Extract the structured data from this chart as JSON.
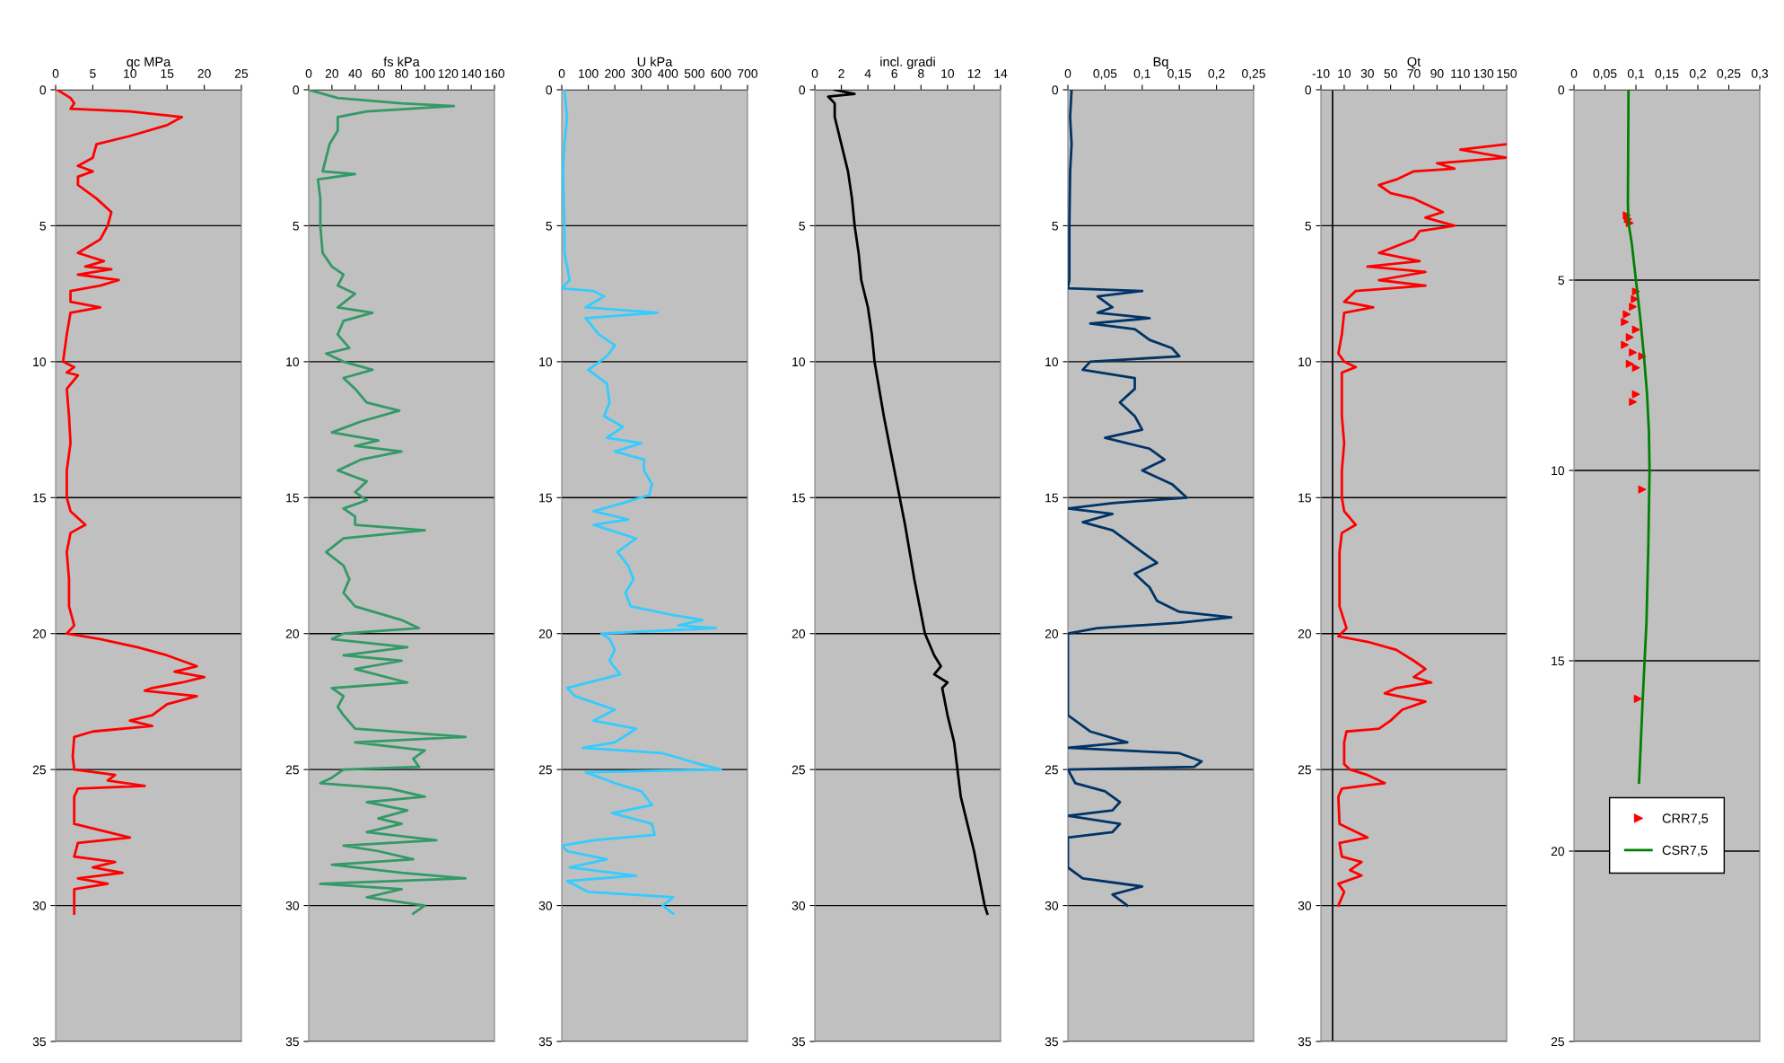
{
  "chart_data": [
    {
      "type": "line",
      "orientation": "horizontal",
      "xlabel": "qc MPa",
      "xlim": [
        0,
        25
      ],
      "xticks": [
        0,
        5,
        10,
        15,
        20,
        25
      ],
      "ylim": [
        35,
        0
      ],
      "yticks": [
        0,
        5,
        10,
        15,
        20,
        25,
        30,
        35
      ],
      "grid": "y",
      "series": [
        {
          "color": "#ff0000",
          "x": [
            0,
            0.3,
            0.5,
            0.7,
            0.8,
            1.0,
            1.3,
            1.7,
            2.0,
            2.5,
            2.8,
            3.0,
            3.2,
            3.5,
            4.0,
            4.5,
            5.0,
            5.5,
            6.0,
            6.3,
            6.5,
            6.6,
            6.8,
            7.0,
            7.2,
            7.4,
            7.8,
            8.0,
            8.2,
            9.0,
            10.0,
            10.2,
            10.4,
            10.5,
            11,
            12,
            13,
            14,
            15,
            15.5,
            16.0,
            16.3,
            17,
            18,
            19,
            19.7,
            20.0,
            20.2,
            20.5,
            20.8,
            21.2,
            21.4,
            21.6,
            21.8,
            22.0,
            22.1,
            22.3,
            22.6,
            23.0,
            23.2,
            23.4,
            23.6,
            23.8,
            24.5,
            25.0,
            25.2,
            25.4,
            25.6,
            25.7,
            26,
            27,
            27.5,
            27.7,
            28.2,
            28.4,
            28.6,
            28.8,
            29.0,
            29.2,
            29.4,
            30.0,
            30.3
          ],
          "values": [
            0.2,
            2,
            2.5,
            2,
            10,
            17,
            15,
            10,
            5.5,
            5,
            3,
            5,
            3,
            3,
            5.5,
            7.5,
            7,
            6,
            3,
            6.5,
            4,
            7.5,
            3,
            8.5,
            6,
            2,
            2,
            6,
            2,
            1.5,
            1,
            2.5,
            1.5,
            3,
            1.5,
            1.8,
            2,
            1.5,
            1.5,
            2,
            4,
            2,
            1.5,
            1.8,
            1.8,
            2.5,
            1.5,
            6,
            11,
            15,
            19,
            16,
            20,
            17,
            13,
            12,
            19,
            15,
            13,
            10,
            13,
            5,
            2.5,
            2.3,
            2.5,
            8,
            7,
            12,
            3,
            2.5,
            2.5,
            10,
            3,
            2.5,
            8,
            5,
            9,
            3,
            7,
            2.5,
            2.5,
            2.5
          ]
        }
      ]
    },
    {
      "type": "line",
      "orientation": "horizontal",
      "xlabel": "fs kPa",
      "xlim": [
        0,
        160
      ],
      "xticks": [
        0,
        20,
        40,
        60,
        80,
        100,
        120,
        140,
        160
      ],
      "ylim": [
        35,
        0
      ],
      "yticks": [
        0,
        5,
        10,
        15,
        20,
        25,
        30,
        35
      ],
      "grid": "y",
      "series": [
        {
          "color": "#339966",
          "x": [
            0,
            0.3,
            0.5,
            0.6,
            0.8,
            1.0,
            1.5,
            2,
            2.5,
            3,
            3.1,
            3.3,
            4,
            5,
            6,
            6.5,
            6.8,
            7.2,
            7.5,
            8.0,
            8.2,
            8.5,
            9.0,
            9.5,
            9.7,
            10.0,
            10.3,
            10.6,
            11.0,
            11.5,
            11.8,
            12.2,
            12.6,
            12.9,
            13.1,
            13.3,
            13.6,
            14.0,
            14.4,
            14.8,
            15.1,
            15.4,
            15.7,
            16.0,
            16.2,
            16.5,
            17.0,
            17.5,
            18.0,
            18.5,
            19.0,
            19.5,
            19.8,
            20.0,
            20.2,
            20.5,
            20.8,
            21.0,
            21.3,
            21.8,
            22.0,
            22.3,
            22.7,
            23.0,
            23.5,
            23.8,
            24.0,
            24.3,
            24.6,
            24.9,
            25.0,
            25.3,
            25.5,
            25.7,
            26.0,
            26.2,
            26.5,
            26.8,
            27.0,
            27.3,
            27.6,
            27.8,
            28.0,
            28.3,
            28.5,
            28.8,
            29.0,
            29.2,
            29.4,
            29.7,
            30.0,
            30.3
          ],
          "values": [
            0,
            25,
            80,
            125,
            50,
            25,
            25,
            18,
            15,
            12,
            40,
            8,
            10,
            10,
            12,
            20,
            30,
            25,
            40,
            25,
            55,
            30,
            25,
            35,
            15,
            30,
            55,
            30,
            40,
            50,
            78,
            45,
            20,
            60,
            40,
            80,
            45,
            25,
            50,
            40,
            50,
            30,
            40,
            40,
            100,
            30,
            15,
            30,
            35,
            30,
            40,
            80,
            95,
            30,
            20,
            85,
            30,
            80,
            40,
            85,
            20,
            30,
            25,
            30,
            40,
            135,
            40,
            100,
            90,
            95,
            30,
            20,
            10,
            70,
            100,
            50,
            85,
            60,
            80,
            50,
            110,
            30,
            60,
            90,
            20,
            80,
            135,
            10,
            80,
            50,
            100,
            90
          ]
        }
      ]
    },
    {
      "type": "line",
      "orientation": "horizontal",
      "xlabel": "U kPa",
      "xlim": [
        0,
        700
      ],
      "xticks": [
        0,
        100,
        200,
        300,
        400,
        500,
        600,
        700
      ],
      "ylim": [
        35,
        0
      ],
      "yticks": [
        0,
        5,
        10,
        15,
        20,
        25,
        30,
        35
      ],
      "grid": "y",
      "series": [
        {
          "color": "#33ccff",
          "x": [
            0,
            1,
            2,
            3,
            5,
            6,
            7,
            7.3,
            7.4,
            7.6,
            8.0,
            8.2,
            8.4,
            9.0,
            9.4,
            9.8,
            10.3,
            10.8,
            11.5,
            12.0,
            12.4,
            12.8,
            13.0,
            13.3,
            13.6,
            14.0,
            14.5,
            14.9,
            15.2,
            15.5,
            15.8,
            16.0,
            16.5,
            17.0,
            17.5,
            18.0,
            18.5,
            19.0,
            19.3,
            19.5,
            19.7,
            19.8,
            20.0,
            20.2,
            20.6,
            21.0,
            21.5,
            22.0,
            22.3,
            22.8,
            23.2,
            23.5,
            24.0,
            24.2,
            24.4,
            24.6,
            24.8,
            25.0,
            25.1,
            25.5,
            25.8,
            26.3,
            26.6,
            27.0,
            27.4,
            27.6,
            27.8,
            28.0,
            28.3,
            28.6,
            28.9,
            29.1,
            29.5,
            29.7,
            30.0,
            30.3
          ],
          "values": [
            10,
            20,
            10,
            5,
            10,
            10,
            30,
            0,
            120,
            160,
            90,
            360,
            90,
            140,
            200,
            170,
            100,
            170,
            180,
            160,
            230,
            170,
            300,
            200,
            310,
            310,
            340,
            330,
            230,
            120,
            250,
            120,
            280,
            210,
            250,
            270,
            240,
            260,
            410,
            530,
            440,
            580,
            150,
            180,
            200,
            180,
            220,
            20,
            50,
            200,
            120,
            280,
            200,
            80,
            380,
            450,
            520,
            600,
            90,
            200,
            300,
            340,
            190,
            340,
            350,
            120,
            0,
            20,
            170,
            30,
            280,
            20,
            100,
            420,
            380,
            420
          ]
        }
      ]
    },
    {
      "type": "line",
      "orientation": "horizontal",
      "xlabel": "incl. gradi",
      "xlim": [
        0,
        14
      ],
      "xticks": [
        0,
        2,
        4,
        6,
        8,
        10,
        12,
        14
      ],
      "ylim": [
        35,
        0
      ],
      "yticks": [
        0,
        5,
        10,
        15,
        20,
        25,
        30,
        35
      ],
      "grid": "y",
      "series": [
        {
          "color": "#000000",
          "x": [
            0,
            0.15,
            0.25,
            0.5,
            1,
            2,
            3,
            4,
            5,
            6,
            7,
            8,
            9,
            10,
            12,
            14,
            16,
            18,
            20,
            20.8,
            21.2,
            21.5,
            21.8,
            22,
            23,
            24,
            26,
            28,
            30,
            30.3
          ],
          "values": [
            1.5,
            3,
            1,
            1.5,
            1.5,
            2,
            2.5,
            2.8,
            3,
            3.3,
            3.5,
            4,
            4.3,
            4.5,
            5.2,
            6,
            6.8,
            7.5,
            8.3,
            9,
            9.5,
            9,
            10,
            9.6,
            10,
            10.5,
            11,
            12,
            12.8,
            13
          ]
        }
      ]
    },
    {
      "type": "line",
      "orientation": "horizontal",
      "xlabel": "Bq",
      "xlim": [
        0,
        0.25
      ],
      "xticks": [
        0,
        {
          "value": 0.05,
          "label": "0,05"
        },
        {
          "value": 0.1,
          "label": "0,1"
        },
        {
          "value": 0.15,
          "label": "0,15"
        },
        {
          "value": 0.2,
          "label": "0,2"
        },
        {
          "value": 0.25,
          "label": "0,25"
        }
      ],
      "ylim": [
        35,
        0
      ],
      "yticks": [
        0,
        5,
        10,
        15,
        20,
        25,
        30,
        35
      ],
      "grid": "y",
      "series": [
        {
          "color": "#003366",
          "x": [
            0,
            1,
            2,
            3,
            5,
            7,
            7.3,
            7.4,
            7.6,
            8.0,
            8.2,
            8.4,
            8.6,
            8.8,
            9.2,
            9.5,
            9.8,
            10.0,
            10.3,
            10.6,
            11,
            11.5,
            12,
            12.5,
            12.8,
            13.2,
            13.6,
            14.0,
            14.5,
            15.0,
            15.2,
            15.4,
            15.6,
            15.9,
            16.2,
            16.6,
            17.0,
            17.4,
            17.8,
            18.3,
            18.8,
            19.2,
            19.4,
            19.6,
            19.8,
            20.0,
            21,
            22,
            23,
            23.6,
            24.0,
            24.2,
            24.4,
            24.7,
            24.9,
            25.0,
            25.5,
            25.8,
            26.2,
            26.5,
            26.7,
            27.0,
            27.3,
            27.5,
            28,
            28.6,
            29.0,
            29.3,
            29.6,
            30.0
          ],
          "values": [
            0.005,
            0.003,
            0.005,
            0.003,
            0.002,
            0.002,
            0.0,
            0.1,
            0.04,
            0.06,
            0.04,
            0.11,
            0.03,
            0.09,
            0.11,
            0.14,
            0.15,
            0.03,
            0.02,
            0.09,
            0.09,
            0.07,
            0.09,
            0.1,
            0.05,
            0.11,
            0.13,
            0.1,
            0.14,
            0.16,
            0.06,
            0.0,
            0.06,
            0.02,
            0.06,
            0.08,
            0.1,
            0.12,
            0.09,
            0.11,
            0.12,
            0.15,
            0.22,
            0.15,
            0.04,
            0.0,
            0.0,
            0.0,
            0.0,
            0.03,
            0.08,
            0.0,
            0.15,
            0.18,
            0.17,
            0.0,
            0.01,
            0.05,
            0.07,
            0.06,
            0.0,
            0.07,
            0.06,
            0.0,
            0.0,
            0.0,
            0.02,
            0.1,
            0.06,
            0.08
          ]
        }
      ]
    },
    {
      "type": "line",
      "orientation": "horizontal",
      "xlabel": "Qt",
      "xlim": [
        -10,
        150
      ],
      "xticks": [
        -10,
        10,
        30,
        50,
        70,
        90,
        110,
        130,
        150
      ],
      "ylim": [
        35,
        0
      ],
      "yticks": [
        0,
        5,
        10,
        15,
        20,
        25,
        30,
        35
      ],
      "grid": "y",
      "ref_lines": [
        {
          "axis": "x",
          "value": 0,
          "color": "#000000"
        }
      ],
      "series": [
        {
          "color": "#ff0000",
          "x": [
            2.0,
            2.2,
            2.5,
            2.7,
            2.9,
            3.0,
            3.3,
            3.5,
            3.8,
            4.0,
            4.3,
            4.5,
            4.7,
            5.0,
            5.2,
            5.5,
            6.0,
            6.3,
            6.5,
            6.7,
            7.0,
            7.2,
            7.4,
            7.8,
            8.0,
            8.2,
            9.0,
            9.7,
            10.0,
            10.2,
            10.4,
            11,
            12,
            13,
            14,
            15,
            15.5,
            16.0,
            16.3,
            17,
            18,
            19,
            19.8,
            20.1,
            20.3,
            20.6,
            21.0,
            21.3,
            21.6,
            21.8,
            22.0,
            22.2,
            22.5,
            22.8,
            23.2,
            23.5,
            23.6,
            24.0,
            24.8,
            25.0,
            25.2,
            25.5,
            25.7,
            26,
            27,
            27.5,
            27.7,
            28.2,
            28.4,
            28.7,
            28.9,
            29.2,
            29.5,
            30.0
          ],
          "values": [
            150,
            110,
            150,
            90,
            105,
            70,
            55,
            40,
            50,
            70,
            85,
            95,
            80,
            105,
            75,
            70,
            40,
            75,
            30,
            80,
            40,
            80,
            20,
            10,
            35,
            10,
            8,
            5,
            10,
            20,
            8,
            8,
            8,
            10,
            8,
            8,
            10,
            20,
            8,
            6,
            6,
            6,
            12,
            5,
            30,
            55,
            70,
            80,
            70,
            85,
            55,
            45,
            80,
            60,
            50,
            40,
            12,
            10,
            10,
            15,
            30,
            45,
            8,
            5,
            6,
            30,
            6,
            8,
            25,
            15,
            25,
            5,
            10,
            5
          ]
        }
      ]
    },
    {
      "type": "line",
      "orientation": "horizontal",
      "xlim": [
        0,
        0.3
      ],
      "xticks": [
        0,
        {
          "value": 0.05,
          "label": "0,05"
        },
        {
          "value": 0.1,
          "label": "0,1"
        },
        {
          "value": 0.15,
          "label": "0,15"
        },
        {
          "value": 0.2,
          "label": "0,2"
        },
        {
          "value": 0.25,
          "label": "0,25"
        },
        {
          "value": 0.3,
          "label": "0,3"
        }
      ],
      "ylim": [
        25,
        0
      ],
      "yticks": [
        0,
        5,
        10,
        15,
        20,
        25
      ],
      "grid": "y",
      "legend": "bottom",
      "series": [
        {
          "name": "CRR7,5",
          "type": "scatter",
          "marker": "triangle",
          "color": "#ff0000",
          "x": [
            3.3,
            3.4,
            3.5,
            5.3,
            5.5,
            5.7,
            5.9,
            6.1,
            6.3,
            6.5,
            6.7,
            6.9,
            7.0,
            7.2,
            7.3,
            8.0,
            8.2,
            10.5,
            16.0
          ],
          "values": [
            0.085,
            0.087,
            0.09,
            0.1,
            0.098,
            0.095,
            0.085,
            0.082,
            0.1,
            0.09,
            0.082,
            0.095,
            0.11,
            0.09,
            0.1,
            0.1,
            0.095,
            0.11,
            0.103
          ]
        },
        {
          "name": "CSR7,5",
          "type": "line",
          "color": "#008000",
          "x": [
            0,
            3,
            3.5,
            4,
            5,
            6,
            7,
            8,
            9,
            10,
            12,
            14,
            16,
            18.2
          ],
          "values": [
            0.088,
            0.087,
            0.088,
            0.093,
            0.1,
            0.107,
            0.113,
            0.118,
            0.121,
            0.122,
            0.12,
            0.117,
            0.111,
            0.105
          ]
        }
      ]
    }
  ]
}
